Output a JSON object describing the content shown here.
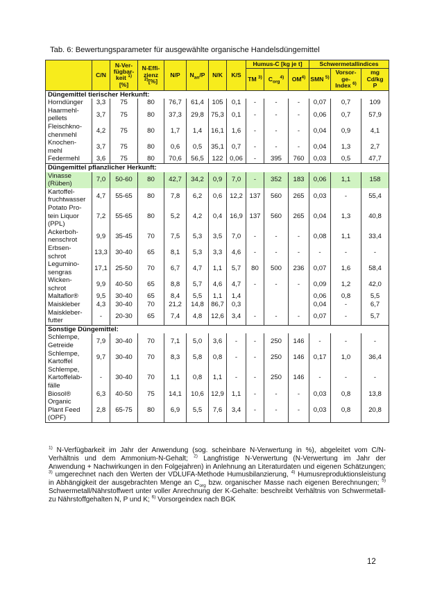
{
  "title": "Tab. 6: Bewertungsparameter für ausgewählte organische Handelsdüngemittel",
  "header": {
    "columns": [
      {
        "lines": [
          "C/N"
        ]
      },
      {
        "lines": [
          "N-Ver-",
          "fügbar-",
          [
            "keit ",
            {
              "sup": "1)"
            }
          ],
          "[%]"
        ]
      },
      {
        "lines": [
          "N-Effi-",
          "zienz",
          [
            {
              "sup": "2)"
            },
            "[%]"
          ]
        ]
      },
      {
        "lines": [
          "N/P"
        ]
      },
      {
        "lines": [
          [
            "N",
            {
              "sub": "an"
            },
            "/P"
          ]
        ]
      },
      {
        "lines": [
          "N/K"
        ]
      },
      {
        "lines": [
          "K/S"
        ]
      },
      {
        "group": "Humus-C [kg je t]",
        "columns": [
          {
            "lines": [
              [
                "TM ",
                {
                  "sup": "3)"
                }
              ]
            ]
          },
          {
            "lines": [
              [
                "C",
                {
                  "sub": "org"
                },
                {
                  "sup": "4)"
                }
              ]
            ]
          },
          {
            "lines": [
              [
                "OM",
                {
                  "sup": "4)"
                }
              ]
            ]
          }
        ]
      },
      {
        "group": "Schwermetallindices",
        "columns": [
          {
            "lines": [
              [
                "SMN ",
                {
                  "sup": "5)"
                }
              ]
            ]
          },
          {
            "lines": [
              "Vorsor-",
              "ge-",
              [
                "Index ",
                {
                  "sup": "6)"
                }
              ]
            ]
          },
          {
            "lines": [
              "mg",
              "Cd/kg",
              "P"
            ]
          }
        ]
      }
    ]
  },
  "sections": [
    {
      "title": "Düngemittel tierischer Herkunft:",
      "rows": [
        {
          "name": [
            "Horndünger"
          ],
          "values": [
            "3,3",
            "75",
            "80",
            "76,7",
            "61,4",
            "105",
            "0,1",
            "-",
            "-",
            "-",
            "0,07",
            "0,7",
            "109"
          ]
        },
        {
          "name": [
            "Haarmehl-",
            "pellets"
          ],
          "values": [
            "3,7",
            "75",
            "80",
            "37,3",
            "29,8",
            "75,3",
            "0,1",
            "-",
            "-",
            "-",
            "0,06",
            "0,7",
            "57,9"
          ]
        },
        {
          "name": [
            "Fleischkno-",
            "chenmehl"
          ],
          "values": [
            "4,2",
            "75",
            "80",
            "1,7",
            "1,4",
            "16,1",
            "1,6",
            "-",
            "-",
            "-",
            "0,04",
            "0,9",
            "4,1"
          ]
        },
        {
          "name": [
            "Knochen-",
            "mehl"
          ],
          "values": [
            "3,7",
            "75",
            "80",
            "0,6",
            "0,5",
            "35,1",
            "0,7",
            "-",
            "-",
            "-",
            "0,04",
            "1,3",
            "2,7"
          ]
        },
        {
          "name": [
            "Federmehl"
          ],
          "values": [
            "3,6",
            "75",
            "80",
            "70,6",
            "56,5",
            "122",
            "0,06",
            "-",
            "395",
            "760",
            "0,03",
            "0,5",
            "47,7"
          ]
        }
      ]
    },
    {
      "title": "Düngemittel pflanzlicher Herkunft:",
      "rows": [
        {
          "name": [
            "Vinasse",
            "(Rüben)"
          ],
          "highlight": true,
          "values": [
            "7,0",
            "50-60",
            "80",
            "42,7",
            "34,2",
            "0,9",
            "7,0",
            "-",
            "352",
            "183",
            "0,06",
            "1,1",
            "158"
          ]
        },
        {
          "name": [
            "Kartoffel-",
            "fruchtwasser"
          ],
          "values": [
            "4,7",
            "55-65",
            "80",
            "7,8",
            "6,2",
            "0,6",
            "12,2",
            "137",
            "560",
            "265",
            "0,03",
            "-",
            "55,4"
          ]
        },
        {
          "name": [
            "Potato Pro-",
            "tein Liquor",
            "(PPL)"
          ],
          "values": [
            "7,2",
            "55-65",
            "80",
            "5,2",
            "4,2",
            "0,4",
            "16,9",
            "137",
            "560",
            "265",
            "0,04",
            "1,3",
            "40,8"
          ]
        },
        {
          "name": [
            "Ackerboh-",
            "nenschrot"
          ],
          "values": [
            "9,9",
            "35-45",
            "70",
            "7,5",
            "5,3",
            "3,5",
            "7,0",
            "-",
            "-",
            "-",
            "0,08",
            "1,1",
            "33,4"
          ]
        },
        {
          "name": [
            "Erbsen-",
            "schrot"
          ],
          "values": [
            "13,3",
            "30-40",
            "65",
            "8,1",
            "5,3",
            "3,3",
            "4,6",
            "-",
            "-",
            "-",
            "-",
            "-",
            "-"
          ]
        },
        {
          "name": [
            "Legumino-",
            "sengras"
          ],
          "values": [
            "17,1",
            "25-50",
            "70",
            "6,7",
            "4,7",
            "1,1",
            "5,7",
            "80",
            "500",
            "236",
            "0,07",
            "1,6",
            "58,4"
          ]
        },
        {
          "name": [
            "Wicken-",
            "schrot"
          ],
          "values": [
            "9,9",
            "40-50",
            "65",
            "8,8",
            "5,7",
            "4,6",
            "4,7",
            "-",
            "-",
            "-",
            "0,09",
            "1,2",
            "42,0"
          ]
        },
        {
          "name": [
            "Maltaflor®"
          ],
          "values": [
            "9,5",
            "30-40",
            "65",
            "8,4",
            "5,5",
            "1,1",
            "1,4",
            null,
            null,
            null,
            "0,06",
            "0,8",
            "5,5"
          ]
        },
        {
          "name": [
            "Maiskleber"
          ],
          "values": [
            "4,3",
            "30-40",
            "70",
            "21,2",
            "14,8",
            "86,7",
            "0,3",
            null,
            null,
            null,
            "0,04",
            "-",
            "6,7"
          ]
        },
        {
          "name": [
            "Maiskleber-",
            "futter"
          ],
          "values": [
            "-",
            "20-30",
            "65",
            "7,4",
            "4,8",
            "12,6",
            "3,4",
            "-",
            "-",
            "-",
            "0,07",
            "-",
            "5,7"
          ]
        }
      ]
    },
    {
      "title": "Sonstige Düngemittel:",
      "rows": [
        {
          "name": [
            "Schlempe,",
            "Getreide"
          ],
          "values": [
            "7,9",
            "30-40",
            "70",
            "7,1",
            "5,0",
            "3,6",
            "-",
            "-",
            "250",
            "146",
            "-",
            "-",
            "-"
          ]
        },
        {
          "name": [
            "Schlempe,",
            "Kartoffel"
          ],
          "values": [
            "9,7",
            "30-40",
            "70",
            "8,3",
            "5,8",
            "0,8",
            "-",
            "-",
            "250",
            "146",
            "0,17",
            "1,0",
            "36,4"
          ]
        },
        {
          "name": [
            "Schlempe,",
            "Kartoffelab-",
            "fälle"
          ],
          "values": [
            "-",
            "30-40",
            "70",
            "1,1",
            "0,8",
            "1,1",
            "-",
            "-",
            "250",
            "146",
            "-",
            "-",
            "-"
          ]
        },
        {
          "name": [
            "Biosol®"
          ],
          "values": [
            "6,3",
            "40-50",
            "75",
            "14,1",
            "10,6",
            "12,9",
            "1,1",
            "-",
            "-",
            "-",
            "0,03",
            "0,8",
            "13,8"
          ]
        },
        {
          "name": [
            "Organic",
            "Plant Feed",
            "(OPF)"
          ],
          "values": [
            "2,8",
            "65-75",
            "80",
            "6,9",
            "5,5",
            "7,6",
            "3,4",
            "-",
            "-",
            "-",
            "0,03",
            "0,8",
            "20,8"
          ]
        }
      ]
    }
  ],
  "footnote": [
    {
      "sup": "1)"
    },
    " N-Verfügbarkeit im Jahr der Anwendung (sog. scheinbare N-Verwertung in %), abgeleitet vom C/N-Verhältnis und dem Ammonium-N-Gehalt; ",
    {
      "sup": "2)"
    },
    " Langfristige N-Verwertung (N-Verwertung im Jahr der Anwendung + Nachwirkungen in den Folgejahren) in Anlehnung an Literaturdaten und eigenen Schätzungen; ",
    {
      "sup": "3)"
    },
    " umgerechnet nach den Werten der VDLUFA-Methode Humusbilanzierung, ",
    {
      "sup": "4)"
    },
    " Humusreproduktionsleistung in Abhängigkeit der ausgebrachten Menge an C",
    {
      "sub": "org"
    },
    " bzw. organischer Masse nach eigenen Berechnungen; ",
    {
      "sup": "5)"
    },
    " Schwermetall/Nährstoffwert unter voller Anrechnung der K-Gehalte: beschreibt Verhältnis von Schwermetall- zu Nährstoffgehalten N, P und K; ",
    {
      "sup": "6)"
    },
    " Vorsorgeindex nach BGK"
  ],
  "page_number": "12"
}
